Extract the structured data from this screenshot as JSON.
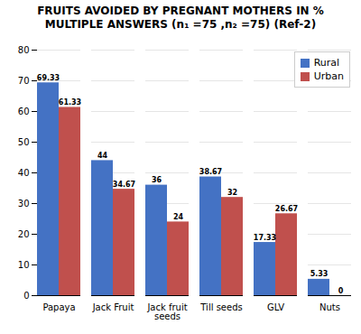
{
  "chart_data": {
    "type": "bar",
    "title": "FRUITS AVOIDED BY PREGNANT MOTHERS IN %",
    "subtitle": "MULTIPLE ANSWERS  (n₁ =75 ,n₂ =75)  (Ref-2)",
    "categories": [
      "Papaya",
      "Jack Fruit",
      "Jack fruit\nseeds",
      "Till seeds",
      "GLV",
      "Nuts"
    ],
    "series": [
      {
        "name": "Rural",
        "color": "#4472C4",
        "values": [
          69.33,
          44,
          36,
          38.67,
          17.33,
          5.33
        ]
      },
      {
        "name": "Urban",
        "color": "#C0504D",
        "values": [
          61.33,
          34.67,
          24,
          32,
          26.67,
          0
        ]
      }
    ],
    "ylim": [
      0,
      80
    ],
    "yticks": [
      0,
      10,
      20,
      30,
      40,
      50,
      60,
      70,
      80
    ],
    "grid": true,
    "legend": "upper right",
    "data_labels": true
  }
}
